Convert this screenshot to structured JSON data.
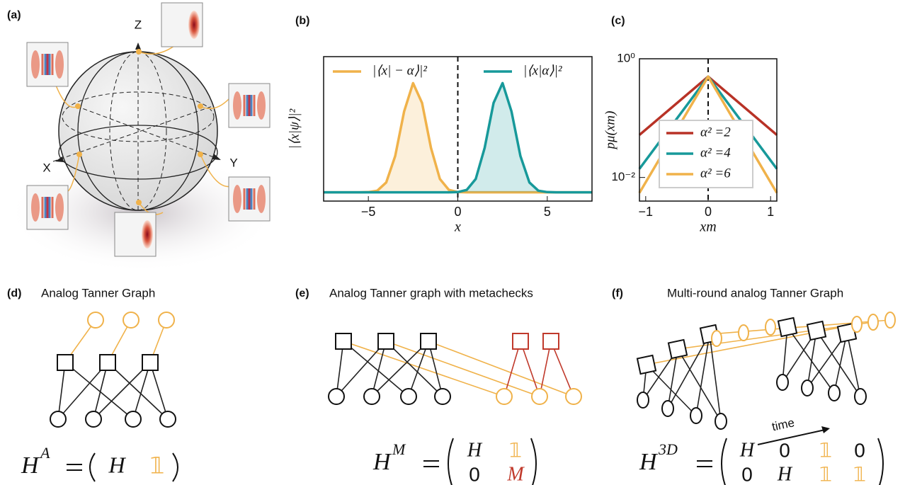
{
  "chart_data": [
    {
      "type": "line",
      "panel_label": "(b)",
      "y_label": "|⟨x|ψ⟩|²",
      "x_label": "x",
      "x": [
        -7.5,
        -7,
        -6.5,
        -6,
        -5.5,
        -5,
        -4.5,
        -4,
        -3.5,
        -3,
        -2.5,
        -2,
        -1.5,
        -1,
        -0.5,
        0,
        0.5,
        1,
        1.5,
        2,
        2.5,
        3,
        3.5,
        4,
        4.5,
        5,
        5.5,
        6,
        6.5,
        7,
        7.5
      ],
      "series": [
        {
          "name": "|⟨x| − α⟩|²",
          "color": "#f0b24a",
          "values": [
            0,
            0,
            0,
            0,
            0,
            0.002,
            0.015,
            0.09,
            0.332,
            0.739,
            0.998,
            0.817,
            0.406,
            0.122,
            0.022,
            0.002,
            0,
            0,
            0,
            0,
            0,
            0,
            0,
            0,
            0,
            0,
            0,
            0,
            0,
            0,
            0
          ]
        },
        {
          "name": "|⟨x|α⟩|²",
          "color": "#17999a",
          "values": [
            0,
            0,
            0,
            0,
            0,
            0,
            0,
            0,
            0,
            0,
            0,
            0,
            0,
            0,
            0,
            0.002,
            0.022,
            0.122,
            0.406,
            0.817,
            0.998,
            0.739,
            0.332,
            0.09,
            0.015,
            0.002,
            0,
            0,
            0,
            0,
            0
          ]
        }
      ],
      "xlim": [
        -7.5,
        7.5
      ],
      "ylim": [
        -0.08,
        1.24
      ],
      "xticks": [
        {
          "value": -5,
          "label": "−5"
        },
        0,
        5
      ],
      "fill": true,
      "vline_x": 0,
      "legend": "upper",
      "grid": false
    },
    {
      "type": "line",
      "panel_label": "(c)",
      "y_label": "pμ(xm)",
      "x_label": "xm",
      "x": [
        -1.1,
        0,
        1.1
      ],
      "series": [
        {
          "name": "α² =2",
          "color": "#b83226",
          "values": [
            0.052,
            0.5,
            0.052
          ]
        },
        {
          "name": "α² =4",
          "color": "#17999a",
          "values": [
            0.014,
            0.5,
            0.014
          ]
        },
        {
          "name": "α² =6",
          "color": "#f0b24a",
          "values": [
            0.0055,
            0.5,
            0.0055
          ]
        }
      ],
      "xlim": [
        -1.1,
        1.1
      ],
      "ylim": [
        0.004,
        1
      ],
      "log_y": true,
      "xticks": [
        {
          "value": -1,
          "label": "−1"
        },
        0,
        1
      ],
      "yticks": [
        {
          "value": 1,
          "label": "10⁰"
        },
        {
          "value": 0.01,
          "label": "10⁻²"
        }
      ],
      "vline_x": 0,
      "legend": "lower center",
      "grid": false
    }
  ],
  "bloch": {
    "label": "(a)",
    "axes": {
      "z": "Z",
      "x": "X",
      "y": "Y"
    }
  },
  "panel_d": {
    "label": "(d)",
    "title": "Analog Tanner Graph",
    "formula": {
      "lhs": "H",
      "sup": "A",
      "rows": [
        [
          "H",
          "𝟙"
        ]
      ]
    }
  },
  "panel_e": {
    "label": "(e)",
    "title": "Analog Tanner graph with metachecks",
    "formula": {
      "lhs": "H",
      "sup": "M",
      "rows": [
        [
          "H",
          "𝟙"
        ],
        [
          "0",
          "M"
        ]
      ]
    }
  },
  "panel_f": {
    "label": "(f)",
    "title": "Multi-round analog Tanner Graph",
    "arrow_label": "time",
    "formula": {
      "lhs": "H",
      "sup": "3D",
      "rows": [
        [
          "H",
          "0",
          "𝟙",
          "0"
        ],
        [
          "0",
          "H",
          "𝟙",
          "𝟙"
        ]
      ]
    }
  }
}
